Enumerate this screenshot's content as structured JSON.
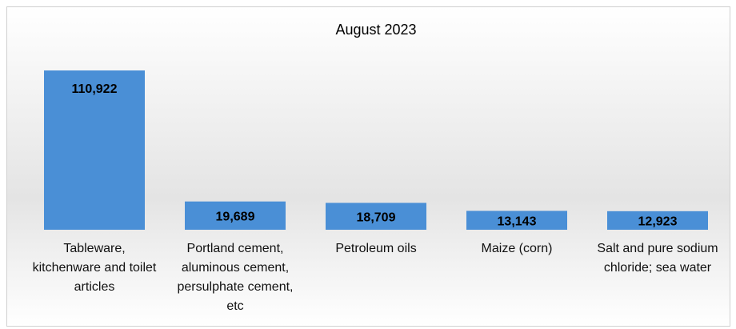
{
  "chart_data": {
    "type": "bar",
    "title": "August 2023",
    "categories": [
      "Tableware, kitchenware and toilet articles",
      "Portland cement, aluminous cement, persulphate cement, etc",
      "Petroleum oils",
      "Maize (corn)",
      "Salt and pure sodium chloride; sea water"
    ],
    "values": [
      110922,
      19689,
      18709,
      13143,
      12923
    ],
    "value_labels": [
      "110,922",
      "19,689",
      "18,709",
      "13,143",
      "12,923"
    ],
    "color": "#4a8fd6"
  }
}
